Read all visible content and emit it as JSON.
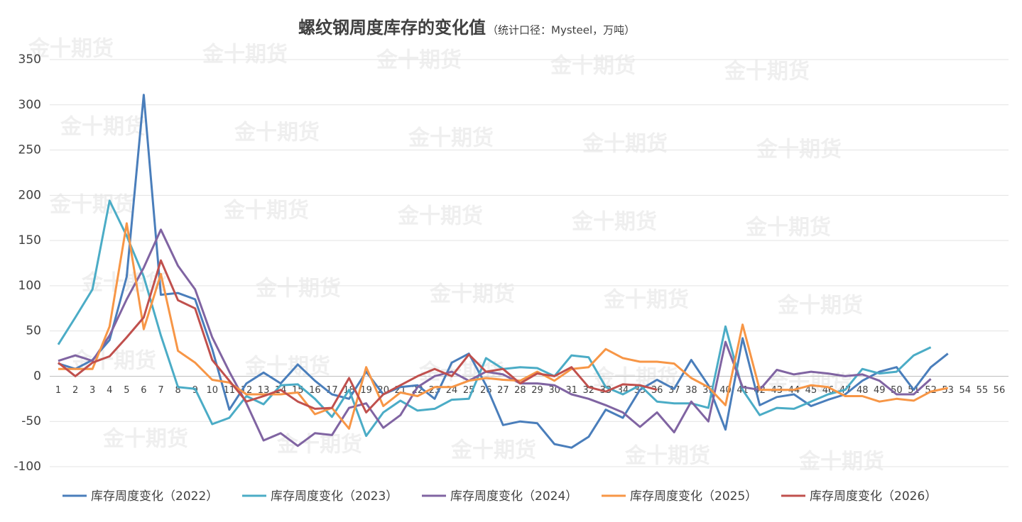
{
  "chart_data": {
    "type": "line",
    "title": "螺纹钢周度库存的变化值",
    "subtitle": "（统计口径：Mysteel，万吨）",
    "watermark": "金十期货",
    "categories": [
      "1",
      "2",
      "3",
      "4",
      "5",
      "6",
      "7",
      "8",
      "9",
      "10",
      "11",
      "12",
      "13",
      "14",
      "15",
      "16",
      "17",
      "18",
      "19",
      "20",
      "21",
      "22",
      "23",
      "24",
      "25",
      "26",
      "27",
      "28",
      "29",
      "30",
      "31",
      "32",
      "33",
      "34",
      "35",
      "36",
      "37",
      "38",
      "39",
      "40",
      "41",
      "42",
      "43",
      "44",
      "45",
      "46",
      "47",
      "48",
      "49",
      "50",
      "51",
      "52",
      "53",
      "54",
      "55",
      "56"
    ],
    "ylim": [
      -100,
      350
    ],
    "yticks": [
      -100,
      -50,
      0,
      50,
      100,
      150,
      200,
      250,
      300,
      350
    ],
    "grid": true,
    "legend": "bottom",
    "series": [
      {
        "name": "库存周度变化（2022）",
        "color": "#4a7ebb",
        "values": [
          14,
          8,
          18,
          40,
          110,
          311,
          90,
          92,
          85,
          30,
          -37,
          -8,
          4,
          -8,
          13,
          -5,
          -20,
          -25,
          5,
          -20,
          -12,
          -10,
          -25,
          15,
          25,
          -10,
          -54,
          -50,
          -52,
          -75,
          -79,
          -67,
          -37,
          -46,
          -15,
          -4,
          -14,
          18,
          -10,
          -59,
          42,
          -32,
          -23,
          -20,
          -33,
          -26,
          -20,
          -5,
          5,
          10,
          -15,
          10,
          25,
          null,
          null,
          null
        ]
      },
      {
        "name": "库存周度变化（2023）",
        "color": "#4bacc6",
        "values": [
          35,
          65,
          96,
          194,
          155,
          110,
          45,
          -12,
          -14,
          -53,
          -46,
          -22,
          -31,
          -10,
          -9,
          -25,
          -45,
          -15,
          -66,
          -40,
          -27,
          -38,
          -36,
          -26,
          -25,
          20,
          8,
          10,
          9,
          0,
          23,
          21,
          -12,
          -20,
          -10,
          -28,
          -30,
          -30,
          -35,
          55,
          -15,
          -43,
          -35,
          -36,
          -28,
          -20,
          -15,
          8,
          3,
          5,
          23,
          32,
          null,
          null,
          null,
          null
        ]
      },
      {
        "name": "库存周度变化（2024）",
        "color": "#8064a2",
        "values": [
          17,
          23,
          17,
          45,
          85,
          120,
          162,
          122,
          96,
          43,
          5,
          -30,
          -71,
          -63,
          -77,
          -63,
          -65,
          -35,
          -30,
          -57,
          -43,
          -12,
          0,
          5,
          -5,
          5,
          2,
          -8,
          -8,
          -10,
          -20,
          -25,
          -32,
          -40,
          -56,
          -40,
          -62,
          -28,
          -50,
          38,
          -12,
          -15,
          7,
          2,
          5,
          3,
          0,
          2,
          -5,
          -20,
          -20,
          -3,
          null,
          null,
          null,
          null
        ]
      },
      {
        "name": "库存周度变化（2025）",
        "color": "#f79646",
        "values": [
          8,
          8,
          8,
          55,
          169,
          52,
          113,
          28,
          15,
          -4,
          -7,
          -20,
          -20,
          -20,
          -18,
          -42,
          -35,
          -58,
          10,
          -33,
          -18,
          -22,
          -12,
          -12,
          -5,
          -2,
          -4,
          -5,
          5,
          -5,
          8,
          10,
          30,
          20,
          16,
          16,
          14,
          -2,
          -12,
          -32,
          57,
          -15,
          -15,
          -15,
          -10,
          -12,
          -22,
          -22,
          -28,
          -25,
          -27,
          -17,
          -13,
          null,
          null,
          null
        ]
      },
      {
        "name": "库存周度变化（2026）",
        "color": "#c0504d",
        "values": [
          15,
          0,
          15,
          22,
          43,
          65,
          128,
          84,
          75,
          18,
          -5,
          -28,
          -22,
          -15,
          -28,
          -36,
          -35,
          -2,
          -40,
          -20,
          -10,
          0,
          8,
          0,
          24,
          5,
          8,
          -8,
          3,
          0,
          10,
          -12,
          -17,
          -9,
          -10,
          -15,
          null,
          null,
          null,
          null,
          null,
          null,
          null,
          null,
          null,
          null,
          null,
          null,
          null,
          null,
          null,
          null,
          null,
          null,
          null,
          null
        ]
      }
    ]
  }
}
